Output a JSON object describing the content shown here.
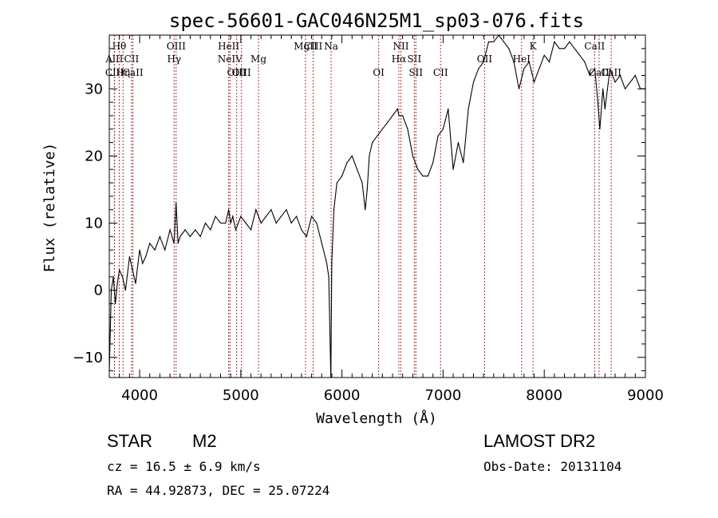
{
  "chart_data": {
    "type": "line",
    "title": "spec-56601-GAC046N25M1_sp03-076.fits",
    "xlabel": "Wavelength (Å)",
    "ylabel": "Flux (relative)",
    "xlim": [
      3700,
      9000
    ],
    "ylim": [
      -13,
      38
    ],
    "xticks": [
      4000,
      5000,
      6000,
      7000,
      8000,
      9000
    ],
    "yticks": [
      -10,
      0,
      10,
      20,
      30
    ],
    "grid": false,
    "series": [
      {
        "color": "#000000",
        "x": [
          3700,
          3720,
          3740,
          3760,
          3780,
          3800,
          3830,
          3860,
          3900,
          3930,
          3960,
          4000,
          4030,
          4060,
          4100,
          4150,
          4200,
          4250,
          4300,
          4340,
          4360,
          4380,
          4400,
          4450,
          4500,
          4550,
          4600,
          4650,
          4700,
          4750,
          4800,
          4850,
          4880,
          4900,
          4920,
          4950,
          5000,
          5050,
          5100,
          5150,
          5200,
          5250,
          5300,
          5350,
          5400,
          5450,
          5500,
          5550,
          5600,
          5650,
          5700,
          5750,
          5800,
          5850,
          5870,
          5890,
          5900,
          5920,
          5950,
          6000,
          6050,
          6100,
          6150,
          6200,
          6230,
          6250,
          6270,
          6300,
          6350,
          6400,
          6450,
          6500,
          6550,
          6563,
          6600,
          6650,
          6700,
          6750,
          6800,
          6850,
          6900,
          6950,
          7000,
          7050,
          7100,
          7150,
          7200,
          7250,
          7300,
          7350,
          7400,
          7450,
          7500,
          7550,
          7600,
          7650,
          7700,
          7750,
          7800,
          7850,
          7900,
          7950,
          8000,
          8050,
          8100,
          8150,
          8200,
          8250,
          8300,
          8350,
          8400,
          8450,
          8500,
          8530,
          8550,
          8580,
          8600,
          8650,
          8700,
          8750,
          8800,
          8850,
          8900,
          8950,
          9000
        ],
        "y": [
          -12,
          0,
          2,
          -2,
          1,
          3,
          2,
          0,
          5,
          3,
          1,
          6,
          4,
          5,
          7,
          6,
          8,
          6,
          9,
          7,
          13,
          7,
          8,
          9,
          8,
          9,
          8,
          10,
          9,
          11,
          10,
          10,
          12,
          10,
          11,
          9,
          11,
          10,
          9,
          12,
          10,
          11,
          12,
          10,
          11,
          12,
          10,
          11,
          9,
          8,
          11,
          10,
          7,
          4,
          2,
          -13,
          4,
          12,
          16,
          17,
          19,
          20,
          18,
          16,
          12,
          15,
          20,
          22,
          23,
          24,
          25,
          26,
          27,
          26,
          26,
          24,
          20,
          18,
          17,
          17,
          19,
          23,
          24,
          27,
          18,
          22,
          19,
          27,
          31,
          33,
          34,
          37,
          37,
          38,
          37,
          36,
          34,
          30,
          33,
          34,
          31,
          33,
          35,
          34,
          37,
          36,
          36,
          37,
          36,
          35,
          34,
          32,
          33,
          28,
          24,
          30,
          27,
          33,
          31,
          32,
          30,
          31,
          32,
          30,
          30
        ]
      }
    ],
    "lines": [
      {
        "name": "Hθ",
        "x": 3798,
        "row": 0
      },
      {
        "name": "AlII",
        "x": 3750,
        "row": 1
      },
      {
        "name": "CII",
        "x": 3920,
        "row": 1
      },
      {
        "name": "CIII",
        "x": 3752,
        "row": 2
      },
      {
        "name": "Hη",
        "x": 3836,
        "row": 2
      },
      {
        "name": "CaII",
        "x": 3934,
        "row": 2
      },
      {
        "name": "OIII",
        "x": 4361,
        "row": 0
      },
      {
        "name": "Hγ",
        "x": 4341,
        "row": 1
      },
      {
        "name": "HeII",
        "x": 4880,
        "row": 0
      },
      {
        "name": "NeIV",
        "x": 4893,
        "row": 1
      },
      {
        "name": "OIII",
        "x": 4959,
        "row": 2
      },
      {
        "name": "OIII",
        "x": 5007,
        "row": 2
      },
      {
        "name": "Mg",
        "x": 5175,
        "row": 1
      },
      {
        "name": "MgII",
        "x": 5640,
        "row": 0
      },
      {
        "name": "CIII",
        "x": 5715,
        "row": 0
      },
      {
        "name": "Na",
        "x": 5893,
        "row": 0
      },
      {
        "name": "OI",
        "x": 6363,
        "row": 2
      },
      {
        "name": "NII",
        "x": 6583,
        "row": 0
      },
      {
        "name": "Hα",
        "x": 6563,
        "row": 1
      },
      {
        "name": "SII",
        "x": 6716,
        "row": 1
      },
      {
        "name": "SII",
        "x": 6731,
        "row": 2
      },
      {
        "name": "CII",
        "x": 6975,
        "row": 2
      },
      {
        "name": "OII",
        "x": 7410,
        "row": 1
      },
      {
        "name": "HeI",
        "x": 7776,
        "row": 1
      },
      {
        "name": "K",
        "x": 7889,
        "row": 0
      },
      {
        "name": "CaII",
        "x": 8498,
        "row": 0
      },
      {
        "name": "CaII",
        "x": 8542,
        "row": 2
      },
      {
        "name": "CaII",
        "x": 8662,
        "row": 2
      }
    ]
  },
  "info": {
    "class": "STAR",
    "subclass": "M2",
    "survey": "LAMOST DR2",
    "cz": "cz = 16.5 ± 6.9 km/s",
    "obs_date": "Obs-Date: 20131104",
    "coords": "RA =  44.92873, DEC =  25.07224"
  }
}
